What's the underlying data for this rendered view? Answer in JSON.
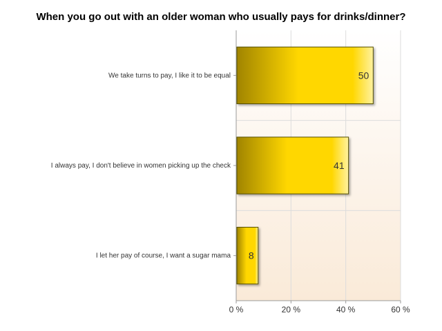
{
  "chart_data": {
    "type": "bar",
    "orientation": "horizontal",
    "title": "When you go out with an older woman who usually pays for drinks/dinner?",
    "categories": [
      "We take turns to pay, I like it to be equal",
      "I always pay, I don't believe in women picking up the check",
      "I let her pay of course, I want a sugar mama"
    ],
    "values": [
      50,
      41,
      8
    ],
    "data_labels": [
      "50",
      "41",
      "8"
    ],
    "unit": "%",
    "xlim": [
      0,
      60
    ],
    "xticks": [
      0,
      20,
      40,
      60
    ],
    "xtick_labels": [
      "0 %",
      "20 %",
      "40 %",
      "60 %"
    ],
    "xlabel": "",
    "ylabel": "",
    "grid": true,
    "legend": "none",
    "colors": {
      "bar_dark": "#a08400",
      "bar_mid": "#ffd700",
      "bar_light": "#fff2a0",
      "bar_border": "#555000",
      "plot_bg_top": "#ffffff",
      "plot_bg_bottom": "#faead8",
      "grid": "#dcdcdc",
      "axis": "#999999",
      "text": "#333333"
    }
  }
}
